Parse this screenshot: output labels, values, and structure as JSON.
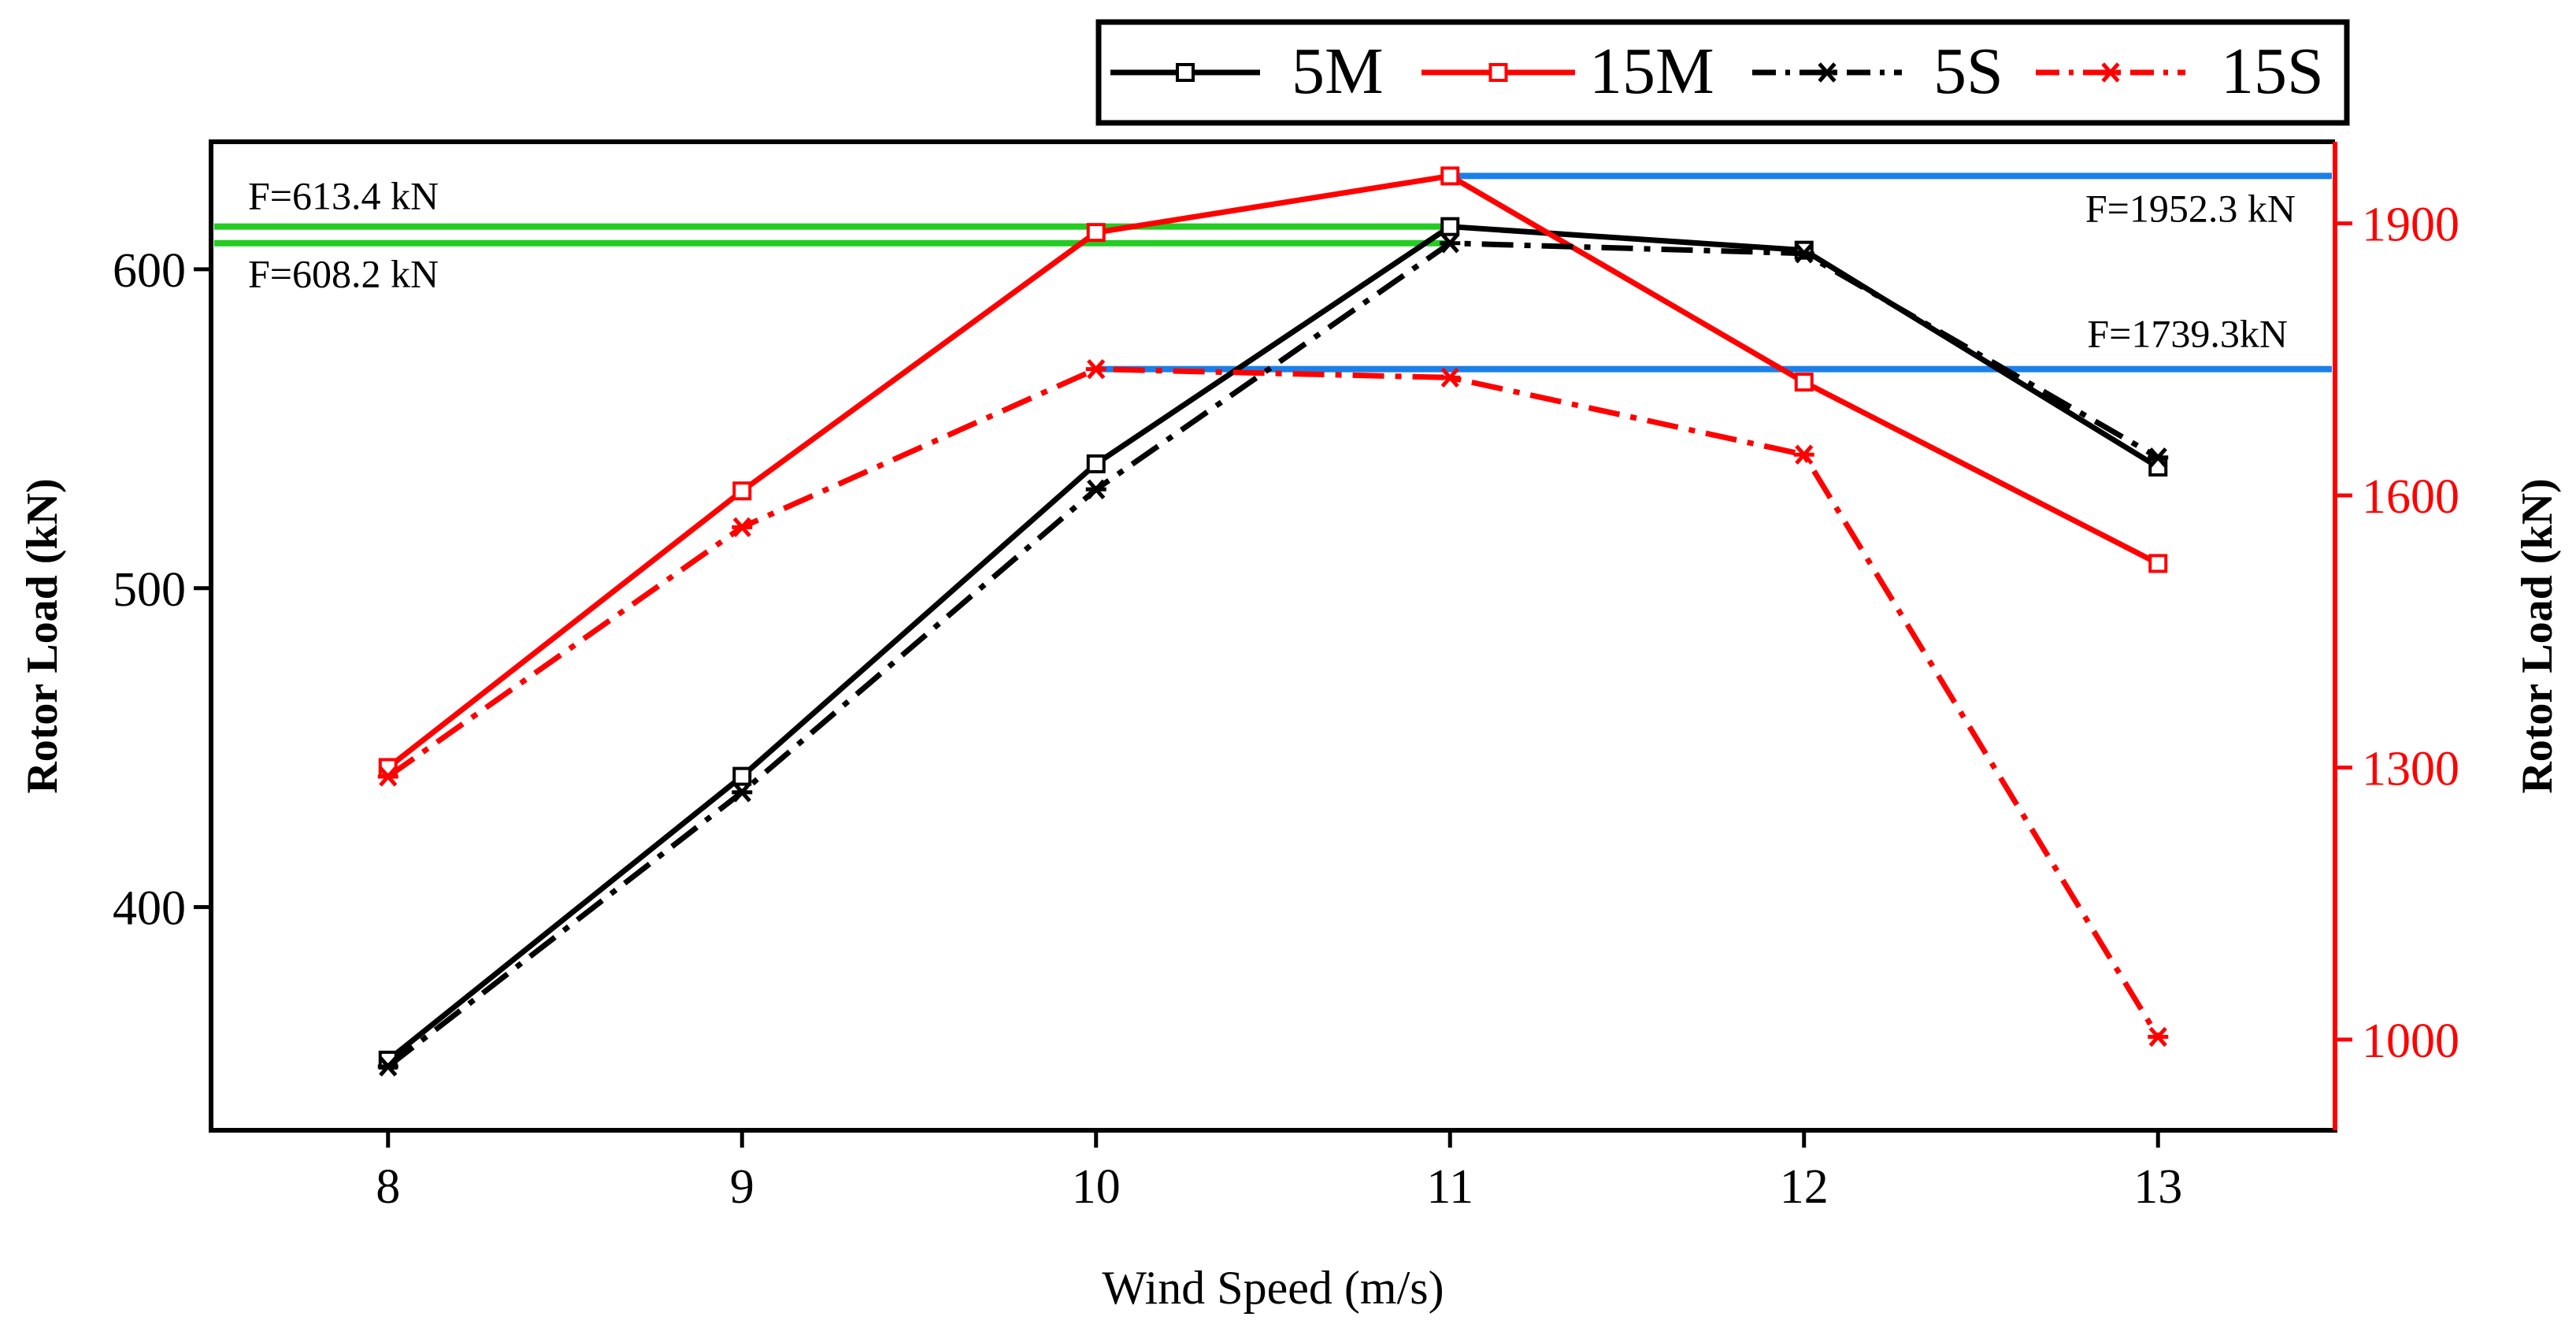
{
  "chart_data": {
    "type": "line",
    "title": "",
    "xlabel": "Wind  Speed (m/s)",
    "ylabel_left": "Rotor  Load (kN)",
    "ylabel_right": "Rotor  Load (kN)",
    "x": [
      8,
      9,
      10,
      11,
      12,
      13
    ],
    "x_ticks": [
      "8",
      "9",
      "10",
      "11",
      "12",
      "13"
    ],
    "xlim": [
      7.5,
      13.5
    ],
    "ylim_left": [
      330,
      640
    ],
    "ylim_right": [
      900,
      1990
    ],
    "y_ticks_left": [
      "400",
      "500",
      "600"
    ],
    "y_ticks_left_values": [
      400,
      500,
      600
    ],
    "y_ticks_right": [
      "1000",
      "1300",
      "1600",
      "1900"
    ],
    "y_ticks_right_values": [
      1000,
      1300,
      1600,
      1900
    ],
    "legend_position": "top-right outside",
    "series": [
      {
        "name": "5M",
        "axis": "left",
        "color": "#000000",
        "line": "solid",
        "marker": "square",
        "values": [
          352,
          441,
          539,
          613.4,
          606,
          538
        ]
      },
      {
        "name": "15M",
        "axis": "right",
        "color": "#ff0000",
        "line": "solid",
        "marker": "square",
        "values": [
          1300,
          1605,
          1890,
          1952.3,
          1725,
          1525
        ]
      },
      {
        "name": "5S",
        "axis": "left",
        "color": "#000000",
        "line": "dashdot",
        "marker": "asterisk",
        "values": [
          350,
          436,
          531,
          608.2,
          605,
          541
        ]
      },
      {
        "name": "15S",
        "axis": "right",
        "color": "#ff0000",
        "line": "dashdot",
        "marker": "asterisk",
        "values": [
          1290,
          1565,
          1739.3,
          1730,
          1645,
          1003
        ]
      }
    ],
    "reference_lines": [
      {
        "label": "F=613.4 kN",
        "axis": "left",
        "value": 613.4,
        "x_from": 7.5,
        "x_to": 11,
        "color": "#22cc22",
        "label_side": "above-left"
      },
      {
        "label": "F=608.2 kN",
        "axis": "left",
        "value": 608.2,
        "x_from": 7.5,
        "x_to": 11,
        "color": "#22cc22",
        "label_side": "below-left"
      },
      {
        "label": "F=1952.3 kN",
        "axis": "right",
        "value": 1952.3,
        "x_from": 11,
        "x_to": 13.5,
        "color": "#1a7fe8",
        "label_side": "below-right"
      },
      {
        "label": "F=1739.3kN",
        "axis": "right",
        "value": 1739.3,
        "x_from": 10,
        "x_to": 13.5,
        "color": "#1a7fe8",
        "label_side": "above-right"
      }
    ]
  }
}
